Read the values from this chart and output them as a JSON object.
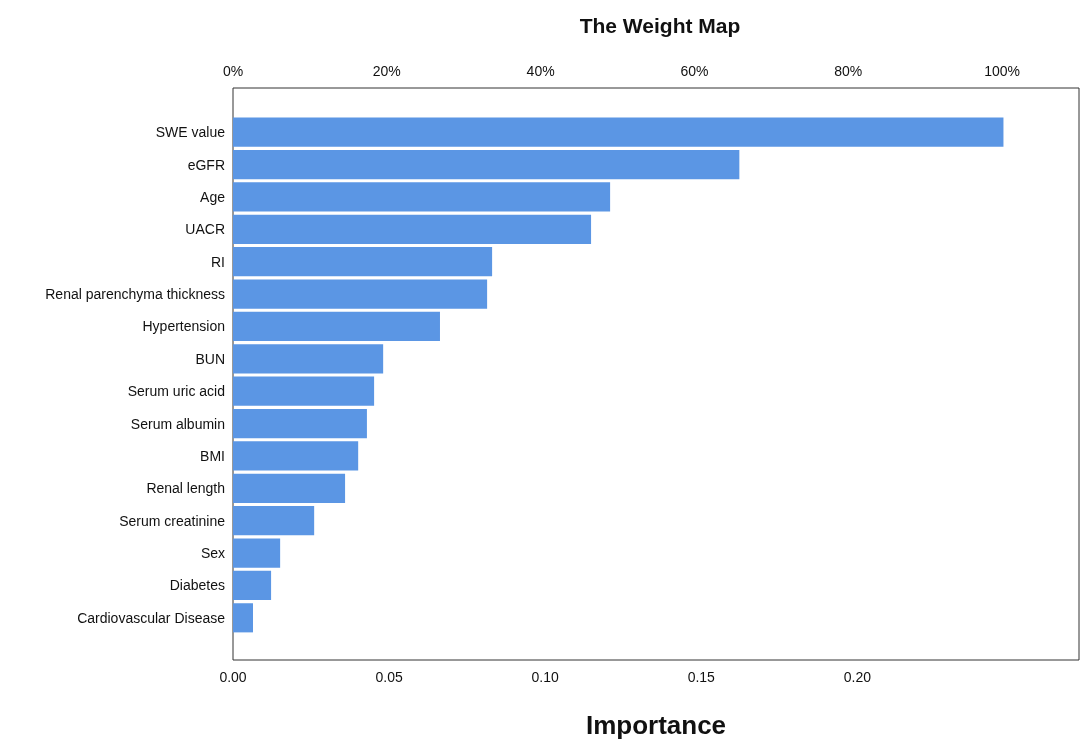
{
  "chart_data": {
    "type": "bar",
    "orientation": "horizontal",
    "title": "The Weight Map",
    "xlabel": "Importance",
    "categories": [
      "SWE value",
      "eGFR",
      "Age",
      "UACR",
      "RI",
      "Renal parenchyma thickness",
      "Hypertension",
      "BUN",
      "Serum uric acid",
      "Serum albumin",
      "BMI",
      "Renal length",
      "Serum creatinine",
      "Sex",
      "Diabetes",
      "Cardiovascular Disease"
    ],
    "values": [
      0.2468,
      0.1622,
      0.1208,
      0.1147,
      0.083,
      0.0814,
      0.0663,
      0.0481,
      0.0452,
      0.0429,
      0.0401,
      0.0359,
      0.026,
      0.0151,
      0.0122,
      0.0064
    ],
    "color": "#5b96e4",
    "xlim": [
      0,
      0.271
    ],
    "xticks": [
      {
        "value": 0,
        "label": "0.00"
      },
      {
        "value": 0.05,
        "label": "0.05"
      },
      {
        "value": 0.1,
        "label": "0.10"
      },
      {
        "value": 0.15,
        "label": "0.15"
      },
      {
        "value": 0.2,
        "label": "0.20"
      }
    ],
    "x2lim": [
      0,
      110
    ],
    "x2ticks": [
      {
        "value": 0,
        "label": "0%"
      },
      {
        "value": 20,
        "label": "20%"
      },
      {
        "value": 40,
        "label": "40%"
      },
      {
        "value": 60,
        "label": "60%"
      },
      {
        "value": 80,
        "label": "80%"
      },
      {
        "value": 100,
        "label": "100%"
      }
    ],
    "grid": false
  }
}
